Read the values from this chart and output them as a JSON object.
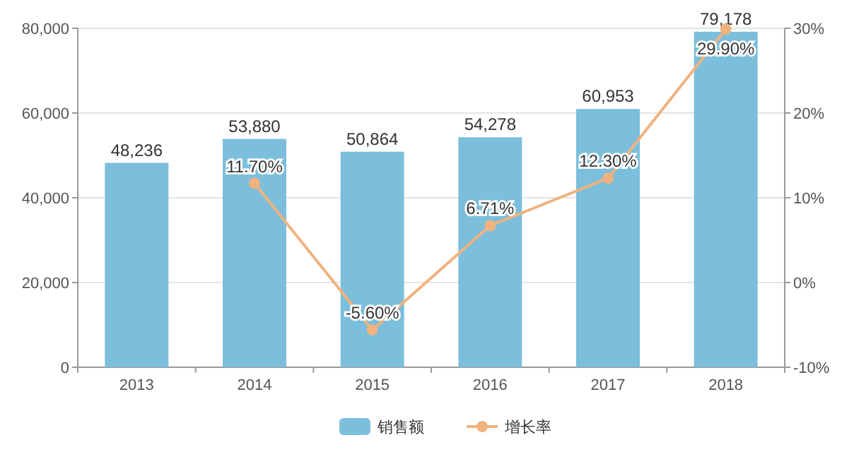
{
  "chart_data": {
    "type": "bar",
    "categories": [
      "2013",
      "2014",
      "2015",
      "2016",
      "2017",
      "2018"
    ],
    "series": [
      {
        "name": "销售额",
        "color": "#7bbfdc",
        "values": [
          48236,
          53880,
          50864,
          54278,
          60953,
          79178
        ],
        "value_labels": [
          "48,236",
          "53,880",
          "50,864",
          "54,278",
          "60,953",
          "79,178"
        ]
      },
      {
        "name": "增长率",
        "type": "line",
        "axis": "y2",
        "color": "#f0b27e",
        "values": [
          null,
          11.7,
          -5.6,
          6.71,
          12.3,
          29.9
        ],
        "value_labels": [
          null,
          "11.70%",
          "-5.60%",
          "6.71%",
          "12.30%",
          "29.90%"
        ]
      }
    ],
    "ylim": [
      0,
      80000
    ],
    "yticks": [
      0,
      {
        "value": 20000,
        "label": "20,000"
      },
      {
        "value": 40000,
        "label": "40,000"
      },
      {
        "value": 60000,
        "label": "60,000"
      },
      {
        "value": 80000,
        "label": "80,000"
      }
    ],
    "y2lim": [
      -10,
      30
    ],
    "y2ticks": [
      {
        "value": -10,
        "label": "-10%"
      },
      {
        "value": 0,
        "label": "0%"
      },
      {
        "value": 10,
        "label": "10%"
      },
      {
        "value": 20,
        "label": "20%"
      },
      {
        "value": 30,
        "label": "30%"
      }
    ],
    "grid": "y",
    "legend": "bottom",
    "marker": "circle"
  }
}
